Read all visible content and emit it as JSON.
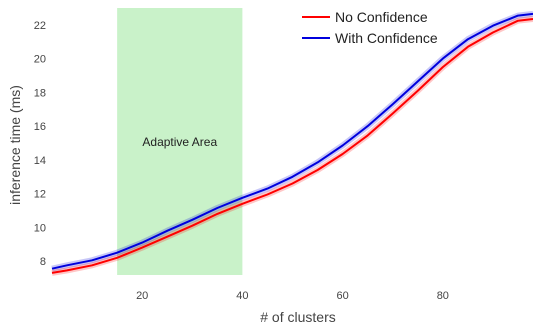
{
  "chart_data": {
    "type": "line",
    "title": "",
    "xlabel": "# of clusters",
    "ylabel": "inference time (ms)",
    "xlim": [
      2,
      98
    ],
    "ylim": [
      7.0,
      23.0
    ],
    "x_ticks": [
      20,
      40,
      60,
      80
    ],
    "y_ticks": [
      8,
      10,
      12,
      14,
      16,
      18,
      20,
      22
    ],
    "grid": false,
    "legend_position": "top-right",
    "shaded_region": {
      "label": "Adaptive Area",
      "x_start": 15,
      "x_end": 40,
      "color": "#c9f2c9"
    },
    "x": [
      2,
      5,
      10,
      15,
      20,
      25,
      30,
      35,
      40,
      45,
      50,
      55,
      60,
      65,
      70,
      75,
      80,
      85,
      90,
      95,
      98
    ],
    "series": [
      {
        "name": "No Confidence",
        "color": "#ff0000",
        "values": [
          7.3,
          7.45,
          7.75,
          8.2,
          8.8,
          9.45,
          10.1,
          10.8,
          11.4,
          11.95,
          12.6,
          13.4,
          14.35,
          15.45,
          16.75,
          18.1,
          19.5,
          20.7,
          21.55,
          22.25,
          22.35
        ]
      },
      {
        "name": "With Confidence",
        "color": "#0000dd",
        "values": [
          7.55,
          7.75,
          8.05,
          8.5,
          9.1,
          9.8,
          10.45,
          11.15,
          11.75,
          12.3,
          13.0,
          13.85,
          14.85,
          16.0,
          17.3,
          18.65,
          20.0,
          21.15,
          21.95,
          22.55,
          22.65
        ]
      }
    ]
  }
}
